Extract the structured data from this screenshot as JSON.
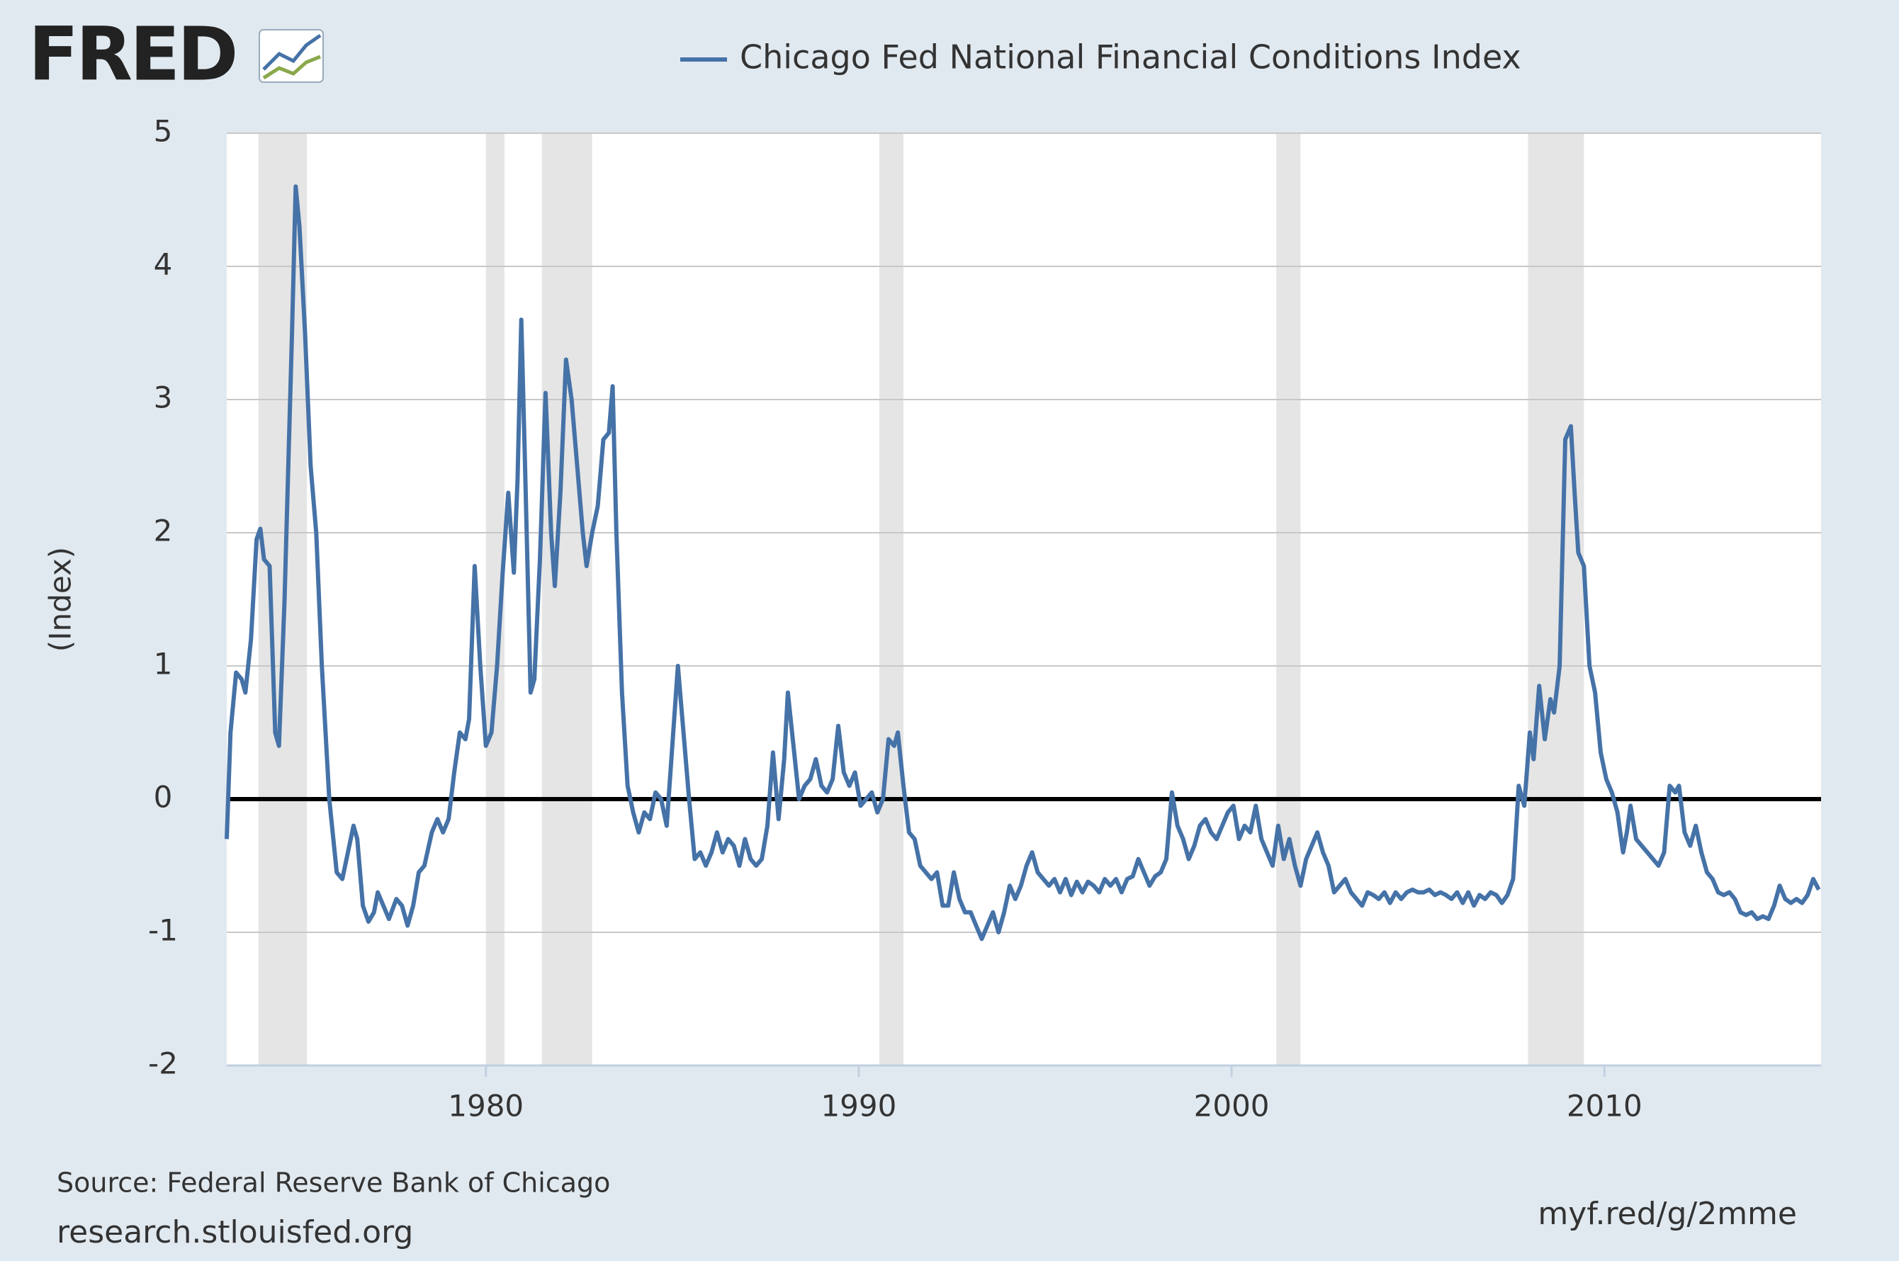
{
  "chart_data": {
    "type": "line",
    "logo": "FRED",
    "y_label": "(Index)",
    "source": "Source: Federal Reserve Bank of Chicago",
    "site": "research.stlouisfed.org",
    "short_url": "myf.red/g/2mme",
    "xlim": [
      1973.05,
      2015.81
    ],
    "xticks": [
      1980,
      1990,
      2000,
      2010
    ],
    "ylim": [
      -2,
      5
    ],
    "yticks": [
      -2,
      -1,
      0,
      1,
      2,
      3,
      4,
      5
    ],
    "grid": true,
    "zero_line": true,
    "recession_color": "#e5e5e5",
    "recessions": [
      {
        "start": 1973.9,
        "end": 1975.2
      },
      {
        "start": 1980.0,
        "end": 1980.5
      },
      {
        "start": 1981.5,
        "end": 1982.85
      },
      {
        "start": 1990.55,
        "end": 1991.2
      },
      {
        "start": 2001.2,
        "end": 2001.85
      },
      {
        "start": 2007.95,
        "end": 2009.45
      }
    ],
    "x": [
      1973.05,
      1973.15,
      1973.3,
      1973.45,
      1973.55,
      1973.7,
      1973.85,
      1973.95,
      1974.05,
      1974.2,
      1974.35,
      1974.45,
      1974.6,
      1974.8,
      1974.9,
      1975.0,
      1975.15,
      1975.3,
      1975.45,
      1975.6,
      1975.8,
      1976.0,
      1976.15,
      1976.3,
      1976.45,
      1976.55,
      1976.7,
      1976.85,
      1977.0,
      1977.1,
      1977.25,
      1977.4,
      1977.6,
      1977.75,
      1977.9,
      1978.05,
      1978.2,
      1978.35,
      1978.55,
      1978.7,
      1978.85,
      1979.0,
      1979.15,
      1979.3,
      1979.45,
      1979.55,
      1979.7,
      1979.85,
      1980.0,
      1980.15,
      1980.3,
      1980.45,
      1980.6,
      1980.75,
      1980.85,
      1980.95,
      1981.05,
      1981.2,
      1981.3,
      1981.45,
      1981.6,
      1981.75,
      1981.85,
      1982.0,
      1982.15,
      1982.3,
      1982.45,
      1982.6,
      1982.7,
      1982.85,
      1983.0,
      1983.15,
      1983.3,
      1983.4,
      1983.5,
      1983.65,
      1983.8,
      1983.95,
      1984.1,
      1984.25,
      1984.4,
      1984.55,
      1984.7,
      1984.85,
      1985.0,
      1985.15,
      1985.3,
      1985.45,
      1985.6,
      1985.75,
      1985.9,
      1986.05,
      1986.2,
      1986.35,
      1986.5,
      1986.65,
      1986.8,
      1986.95,
      1987.1,
      1987.25,
      1987.4,
      1987.55,
      1987.7,
      1987.85,
      1988.0,
      1988.1,
      1988.25,
      1988.4,
      1988.55,
      1988.7,
      1988.85,
      1989.0,
      1989.15,
      1989.3,
      1989.45,
      1989.6,
      1989.75,
      1989.9,
      1990.05,
      1990.2,
      1990.35,
      1990.5,
      1990.65,
      1990.8,
      1990.95,
      1991.05,
      1991.2,
      1991.35,
      1991.5,
      1991.65,
      1991.8,
      1991.95,
      1992.1,
      1992.25,
      1992.4,
      1992.55,
      1992.7,
      1992.85,
      1993.0,
      1993.15,
      1993.3,
      1993.45,
      1993.6,
      1993.75,
      1993.9,
      1994.05,
      1994.2,
      1994.35,
      1994.5,
      1994.65,
      1994.8,
      1994.95,
      1995.1,
      1995.25,
      1995.4,
      1995.55,
      1995.7,
      1995.85,
      1996.0,
      1996.15,
      1996.3,
      1996.45,
      1996.6,
      1996.75,
      1996.9,
      1997.05,
      1997.2,
      1997.35,
      1997.5,
      1997.65,
      1997.8,
      1997.95,
      1998.1,
      1998.25,
      1998.4,
      1998.55,
      1998.7,
      1998.85,
      1999.0,
      1999.15,
      1999.3,
      1999.45,
      1999.6,
      1999.75,
      1999.9,
      2000.05,
      2000.2,
      2000.35,
      2000.5,
      2000.65,
      2000.8,
      2000.95,
      2001.1,
      2001.25,
      2001.4,
      2001.55,
      2001.7,
      2001.85,
      2002.0,
      2002.15,
      2002.3,
      2002.45,
      2002.6,
      2002.75,
      2002.9,
      2003.05,
      2003.2,
      2003.35,
      2003.5,
      2003.65,
      2003.8,
      2003.95,
      2004.1,
      2004.25,
      2004.4,
      2004.55,
      2004.7,
      2004.85,
      2005.0,
      2005.15,
      2005.3,
      2005.45,
      2005.6,
      2005.75,
      2005.9,
      2006.05,
      2006.2,
      2006.35,
      2006.5,
      2006.65,
      2006.8,
      2006.95,
      2007.1,
      2007.25,
      2007.4,
      2007.55,
      2007.7,
      2007.85,
      2008.0,
      2008.1,
      2008.25,
      2008.4,
      2008.55,
      2008.65,
      2008.8,
      2008.95,
      2009.1,
      2009.2,
      2009.3,
      2009.45,
      2009.6,
      2009.75,
      2009.9,
      2010.05,
      2010.2,
      2010.35,
      2010.5,
      2010.6,
      2010.7,
      2010.85,
      2011.0,
      2011.15,
      2011.3,
      2011.45,
      2011.6,
      2011.75,
      2011.9,
      2012.0,
      2012.15,
      2012.3,
      2012.45,
      2012.6,
      2012.75,
      2012.9,
      2013.05,
      2013.2,
      2013.35,
      2013.5,
      2013.65,
      2013.8,
      2013.95,
      2014.1,
      2014.25,
      2014.4,
      2014.55,
      2014.7,
      2014.85,
      2015.0,
      2015.15,
      2015.3,
      2015.45,
      2015.6,
      2015.75
    ],
    "series": [
      {
        "name": "Chicago Fed National Financial Conditions Index",
        "color": "#4572a7",
        "values": [
          -0.3,
          0.5,
          0.95,
          0.9,
          0.8,
          1.2,
          1.95,
          2.03,
          1.8,
          1.75,
          0.5,
          0.4,
          1.5,
          3.5,
          4.6,
          4.3,
          3.5,
          2.5,
          2.0,
          1.0,
          0.0,
          -0.55,
          -0.6,
          -0.4,
          -0.2,
          -0.3,
          -0.8,
          -0.92,
          -0.85,
          -0.7,
          -0.8,
          -0.9,
          -0.75,
          -0.8,
          -0.95,
          -0.8,
          -0.55,
          -0.5,
          -0.25,
          -0.15,
          -0.25,
          -0.15,
          0.2,
          0.5,
          0.45,
          0.6,
          1.75,
          1.0,
          0.4,
          0.5,
          1.0,
          1.7,
          2.3,
          1.7,
          2.4,
          3.6,
          2.5,
          0.8,
          0.9,
          1.8,
          3.05,
          2.0,
          1.6,
          2.3,
          3.3,
          3.0,
          2.5,
          2.0,
          1.75,
          2.0,
          2.2,
          2.7,
          2.75,
          3.1,
          2.0,
          0.8,
          0.1,
          -0.1,
          -0.25,
          -0.1,
          -0.15,
          0.05,
          0.0,
          -0.2,
          0.4,
          1.0,
          0.5,
          0.0,
          -0.45,
          -0.4,
          -0.5,
          -0.4,
          -0.25,
          -0.4,
          -0.3,
          -0.35,
          -0.5,
          -0.3,
          -0.45,
          -0.5,
          -0.45,
          -0.2,
          0.35,
          -0.15,
          0.3,
          0.8,
          0.4,
          0.0,
          0.1,
          0.15,
          0.3,
          0.1,
          0.05,
          0.15,
          0.55,
          0.2,
          0.1,
          0.2,
          -0.05,
          0.0,
          0.05,
          -0.1,
          0.0,
          0.45,
          0.4,
          0.5,
          0.1,
          -0.25,
          -0.3,
          -0.5,
          -0.55,
          -0.6,
          -0.55,
          -0.8,
          -0.8,
          -0.55,
          -0.75,
          -0.85,
          -0.85,
          -0.95,
          -1.05,
          -0.95,
          -0.85,
          -1.0,
          -0.85,
          -0.65,
          -0.75,
          -0.65,
          -0.5,
          -0.4,
          -0.55,
          -0.6,
          -0.65,
          -0.6,
          -0.7,
          -0.6,
          -0.72,
          -0.62,
          -0.7,
          -0.62,
          -0.65,
          -0.7,
          -0.6,
          -0.65,
          -0.6,
          -0.7,
          -0.6,
          -0.58,
          -0.45,
          -0.55,
          -0.65,
          -0.58,
          -0.55,
          -0.45,
          0.05,
          -0.2,
          -0.3,
          -0.45,
          -0.35,
          -0.2,
          -0.15,
          -0.25,
          -0.3,
          -0.2,
          -0.1,
          -0.05,
          -0.3,
          -0.2,
          -0.25,
          -0.05,
          -0.3,
          -0.4,
          -0.5,
          -0.2,
          -0.45,
          -0.3,
          -0.5,
          -0.65,
          -0.45,
          -0.35,
          -0.25,
          -0.4,
          -0.5,
          -0.7,
          -0.65,
          -0.6,
          -0.7,
          -0.75,
          -0.8,
          -0.7,
          -0.72,
          -0.75,
          -0.7,
          -0.78,
          -0.7,
          -0.75,
          -0.7,
          -0.68,
          -0.7,
          -0.7,
          -0.68,
          -0.72,
          -0.7,
          -0.72,
          -0.75,
          -0.7,
          -0.78,
          -0.7,
          -0.8,
          -0.72,
          -0.75,
          -0.7,
          -0.72,
          -0.78,
          -0.72,
          -0.6,
          0.1,
          -0.05,
          0.5,
          0.3,
          0.85,
          0.45,
          0.75,
          0.65,
          1.0,
          2.7,
          2.8,
          2.3,
          1.85,
          1.75,
          1.0,
          0.8,
          0.35,
          0.15,
          0.05,
          -0.1,
          -0.4,
          -0.25,
          -0.05,
          -0.3,
          -0.35,
          -0.4,
          -0.45,
          -0.5,
          -0.4,
          0.1,
          0.05,
          0.1,
          -0.25,
          -0.35,
          -0.2,
          -0.4,
          -0.55,
          -0.6,
          -0.7,
          -0.72,
          -0.7,
          -0.75,
          -0.85,
          -0.87,
          -0.85,
          -0.9,
          -0.88,
          -0.9,
          -0.8,
          -0.65,
          -0.75,
          -0.78,
          -0.75,
          -0.78,
          -0.72,
          -0.6,
          -0.68
        ]
      }
    ]
  }
}
